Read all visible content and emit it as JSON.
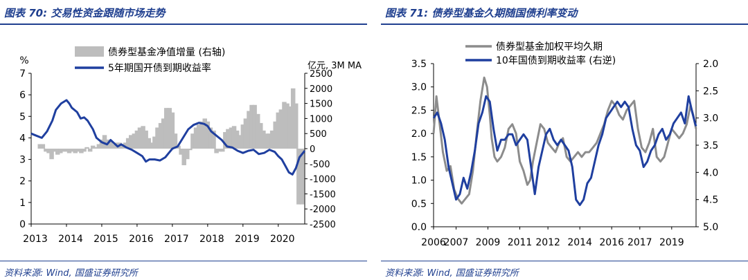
{
  "left": {
    "title_prefix": "图表",
    "title_num": "70",
    "title_text": ": 交易性资金跟随市场走势",
    "source": "资料来源: Wind, 国盛证券研究所"
  },
  "right": {
    "title_prefix": "图表",
    "title_num": "71",
    "title_text": ": 债券型基金久期随国债利率变动",
    "source": "资料来源: Wind, 国盛证券研究所"
  },
  "chart_data": [
    {
      "type": "bar",
      "left_unit": "%",
      "right_unit": "亿元, 3M MA",
      "y_left": {
        "min": 0,
        "max": 7,
        "ticks": [
          0,
          1,
          2,
          3,
          4,
          5,
          6,
          7
        ]
      },
      "y_right": {
        "min": -2500,
        "max": 2500,
        "ticks": [
          2500,
          2000,
          1500,
          1000,
          500,
          0,
          -500,
          -1000,
          -1500,
          -2000,
          -2500
        ]
      },
      "x": {
        "min": 2013.0,
        "max": 2020.75,
        "ticks": [
          "2013",
          "2014",
          "2015",
          "2016",
          "2017",
          "2018",
          "2019",
          "2020"
        ]
      },
      "series": [
        {
          "name": "债券型基金净值增量 (右轴)",
          "kind": "bar",
          "axis": "right",
          "color": "#bdbdbd",
          "x": [
            2013.25,
            2013.33,
            2013.42,
            2013.5,
            2013.58,
            2013.67,
            2013.75,
            2013.83,
            2013.92,
            2014.0,
            2014.08,
            2014.17,
            2014.25,
            2014.33,
            2014.42,
            2014.5,
            2014.58,
            2014.67,
            2014.75,
            2014.83,
            2014.92,
            2015.0,
            2015.08,
            2015.17,
            2015.25,
            2015.33,
            2015.42,
            2015.5,
            2015.58,
            2015.67,
            2015.75,
            2015.83,
            2015.92,
            2016.0,
            2016.08,
            2016.17,
            2016.25,
            2016.33,
            2016.42,
            2016.5,
            2016.58,
            2016.67,
            2016.75,
            2016.83,
            2016.92,
            2017.0,
            2017.08,
            2017.17,
            2017.25,
            2017.33,
            2017.42,
            2017.5,
            2017.58,
            2017.67,
            2017.75,
            2017.83,
            2017.92,
            2018.0,
            2018.08,
            2018.17,
            2018.25,
            2018.33,
            2018.42,
            2018.5,
            2018.58,
            2018.67,
            2018.75,
            2018.83,
            2018.92,
            2019.0,
            2019.08,
            2019.17,
            2019.25,
            2019.33,
            2019.42,
            2019.5,
            2019.58,
            2019.67,
            2019.75,
            2019.83,
            2019.92,
            2020.0,
            2020.08,
            2020.17,
            2020.25,
            2020.33,
            2020.42,
            2020.5,
            2020.58,
            2020.67
          ],
          "values": [
            150,
            150,
            -100,
            -150,
            -350,
            -100,
            -200,
            -150,
            -100,
            -100,
            -150,
            -100,
            -150,
            -100,
            -150,
            -100,
            50,
            -100,
            100,
            50,
            150,
            300,
            450,
            300,
            250,
            150,
            200,
            200,
            150,
            200,
            350,
            450,
            500,
            600,
            700,
            750,
            600,
            350,
            200,
            400,
            700,
            850,
            1000,
            1350,
            1350,
            1200,
            500,
            100,
            -200,
            -550,
            -350,
            -50,
            500,
            700,
            800,
            900,
            1000,
            900,
            700,
            600,
            -150,
            -100,
            -100,
            550,
            650,
            700,
            750,
            600,
            450,
            800,
            1000,
            1250,
            1450,
            1450,
            1150,
            850,
            600,
            500,
            500,
            600,
            900,
            1200,
            1300,
            1550,
            1500,
            1400,
            2000,
            1500,
            -1850,
            -1850
          ]
        },
        {
          "name": "5年期国开债到期收益率",
          "kind": "line",
          "axis": "left",
          "color": "#1f3f9f",
          "x": [
            2013.0,
            2013.15,
            2013.3,
            2013.45,
            2013.6,
            2013.7,
            2013.85,
            2014.0,
            2014.08,
            2014.15,
            2014.3,
            2014.4,
            2014.5,
            2014.6,
            2014.75,
            2014.85,
            2015.0,
            2015.15,
            2015.25,
            2015.35,
            2015.45,
            2015.55,
            2015.7,
            2015.85,
            2016.0,
            2016.15,
            2016.25,
            2016.35,
            2016.5,
            2016.65,
            2016.8,
            2016.9,
            2017.0,
            2017.15,
            2017.3,
            2017.45,
            2017.6,
            2017.75,
            2017.9,
            2018.0,
            2018.1,
            2018.25,
            2018.4,
            2018.55,
            2018.7,
            2018.85,
            2019.0,
            2019.15,
            2019.3,
            2019.45,
            2019.6,
            2019.75,
            2019.9,
            2020.0,
            2020.1,
            2020.2,
            2020.3,
            2020.4,
            2020.5,
            2020.6,
            2020.75
          ],
          "values": [
            4.2,
            4.1,
            4.0,
            4.3,
            4.8,
            5.3,
            5.6,
            5.75,
            5.6,
            5.4,
            5.2,
            4.9,
            4.95,
            4.8,
            4.4,
            4.0,
            3.8,
            3.7,
            3.9,
            3.75,
            3.6,
            3.7,
            3.55,
            3.45,
            3.3,
            3.15,
            2.9,
            3.0,
            3.0,
            2.95,
            3.1,
            3.3,
            3.5,
            3.6,
            4.0,
            4.4,
            4.6,
            4.7,
            4.65,
            4.55,
            4.3,
            4.1,
            3.9,
            3.6,
            3.55,
            3.4,
            3.3,
            3.4,
            3.45,
            3.25,
            3.3,
            3.45,
            3.35,
            3.15,
            3.0,
            2.7,
            2.4,
            2.3,
            2.6,
            3.1,
            3.4
          ]
        }
      ]
    },
    {
      "type": "line",
      "y_left": {
        "min": 0.0,
        "max": 3.5,
        "ticks": [
          "3.5",
          "3.0",
          "2.5",
          "2.0",
          "1.5",
          "1.0",
          "0.5",
          "0.0"
        ]
      },
      "y_right": {
        "min": 2.0,
        "max": 5.0,
        "inverted": true,
        "ticks": [
          "2.0",
          "2.5",
          "3.0",
          "3.5",
          "4.0",
          "4.5",
          "5.0"
        ]
      },
      "x": {
        "min": 2006.0,
        "max": 2020.0,
        "ticks": [
          "2006",
          "2007",
          "2009",
          "2011",
          "2012",
          "2014",
          "2016",
          "2017",
          "2019"
        ]
      },
      "series": [
        {
          "name": "债券型基金加权平均久期",
          "axis": "left",
          "color": "#8c8c8c",
          "x": [
            2006.0,
            2006.15,
            2006.3,
            2006.5,
            2006.7,
            2006.9,
            2007.1,
            2007.3,
            2007.5,
            2007.7,
            2007.9,
            2008.1,
            2008.3,
            2008.5,
            2008.7,
            2008.85,
            2009.0,
            2009.1,
            2009.25,
            2009.4,
            2009.6,
            2009.8,
            2010.0,
            2010.2,
            2010.4,
            2010.6,
            2010.8,
            2011.0,
            2011.15,
            2011.3,
            2011.5,
            2011.7,
            2011.9,
            2012.1,
            2012.3,
            2012.5,
            2012.7,
            2012.9,
            2013.1,
            2013.3,
            2013.5,
            2013.7,
            2013.9,
            2014.1,
            2014.3,
            2014.5,
            2014.7,
            2014.9,
            2015.1,
            2015.3,
            2015.5,
            2015.7,
            2015.9,
            2016.1,
            2016.3,
            2016.5,
            2016.7,
            2016.9,
            2017.1,
            2017.3,
            2017.5,
            2017.7,
            2017.9,
            2018.1,
            2018.3,
            2018.5,
            2018.7,
            2018.9,
            2019.1,
            2019.3,
            2019.5,
            2019.7,
            2019.85,
            2020.0
          ],
          "values": [
            2.0,
            2.8,
            2.3,
            1.6,
            1.2,
            1.3,
            0.8,
            0.6,
            0.5,
            0.6,
            0.7,
            1.2,
            2.0,
            2.7,
            3.2,
            3.0,
            2.4,
            1.9,
            1.5,
            1.4,
            1.5,
            1.7,
            2.1,
            2.2,
            2.0,
            1.4,
            1.2,
            0.9,
            1.0,
            1.4,
            1.8,
            2.2,
            2.1,
            1.8,
            1.7,
            1.6,
            1.8,
            1.9,
            1.5,
            1.4,
            1.5,
            1.6,
            1.5,
            1.6,
            1.6,
            1.7,
            1.8,
            2.0,
            2.2,
            2.5,
            2.7,
            2.6,
            2.4,
            2.3,
            2.5,
            2.6,
            2.7,
            2.1,
            1.7,
            1.6,
            1.8,
            2.1,
            1.5,
            1.4,
            1.5,
            1.8,
            2.1,
            2.0,
            1.9,
            2.0,
            2.2,
            2.6,
            2.4,
            2.1
          ]
        },
        {
          "name": "10年国债到期收益率 (右逆)",
          "axis": "right",
          "color": "#1f3f9f",
          "x": [
            2006.0,
            2006.2,
            2006.4,
            2006.6,
            2006.8,
            2007.0,
            2007.2,
            2007.4,
            2007.6,
            2007.8,
            2008.0,
            2008.2,
            2008.4,
            2008.6,
            2008.8,
            2009.0,
            2009.2,
            2009.4,
            2009.6,
            2009.8,
            2010.0,
            2010.2,
            2010.4,
            2010.6,
            2010.8,
            2011.0,
            2011.2,
            2011.4,
            2011.6,
            2011.8,
            2012.0,
            2012.2,
            2012.4,
            2012.6,
            2012.8,
            2013.0,
            2013.2,
            2013.4,
            2013.6,
            2013.8,
            2014.0,
            2014.2,
            2014.4,
            2014.6,
            2014.8,
            2015.0,
            2015.2,
            2015.4,
            2015.6,
            2015.8,
            2016.0,
            2016.2,
            2016.4,
            2016.6,
            2016.8,
            2017.0,
            2017.2,
            2017.4,
            2017.6,
            2017.8,
            2018.0,
            2018.2,
            2018.4,
            2018.6,
            2018.8,
            2019.0,
            2019.2,
            2019.4,
            2019.6,
            2019.8,
            2019.95,
            2020.0
          ],
          "values": [
            3.0,
            2.9,
            3.1,
            3.4,
            3.9,
            4.2,
            4.5,
            4.4,
            4.1,
            4.3,
            4.0,
            3.6,
            3.1,
            2.9,
            2.6,
            2.7,
            3.2,
            3.6,
            3.4,
            3.4,
            3.3,
            3.3,
            3.5,
            3.4,
            3.3,
            3.4,
            3.9,
            4.4,
            3.9,
            3.6,
            3.3,
            3.2,
            3.4,
            3.5,
            3.4,
            3.5,
            3.6,
            3.9,
            4.5,
            4.6,
            4.5,
            4.2,
            4.1,
            3.8,
            3.5,
            3.3,
            3.0,
            2.9,
            2.8,
            2.7,
            2.8,
            2.7,
            2.8,
            3.2,
            3.5,
            3.6,
            3.9,
            3.8,
            3.6,
            3.5,
            3.3,
            3.2,
            3.4,
            3.3,
            3.1,
            3.0,
            2.9,
            3.1,
            2.6,
            2.9,
            3.1,
            3.15
          ]
        }
      ]
    }
  ]
}
